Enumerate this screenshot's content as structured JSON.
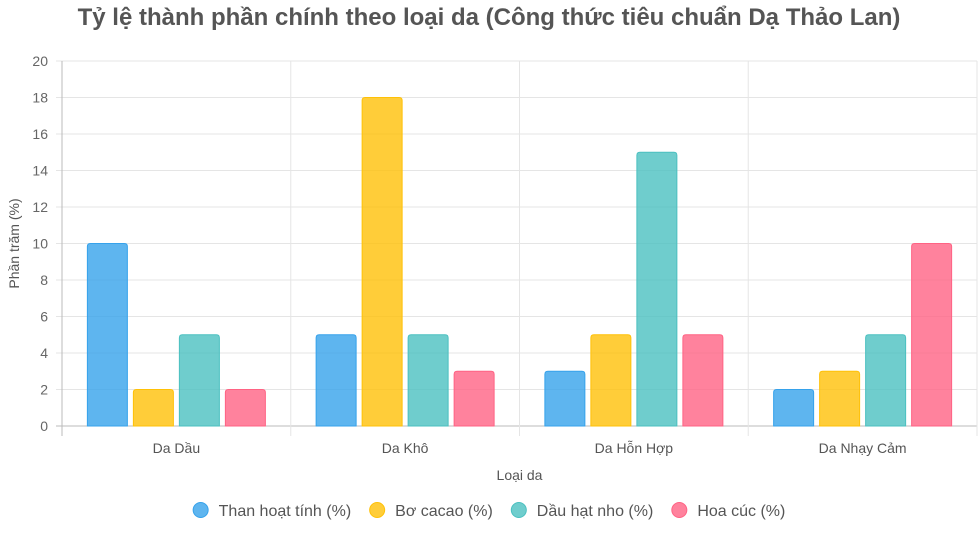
{
  "chart_data": {
    "type": "bar",
    "title": "Tỷ lệ thành phần chính theo loại da (Công thức tiêu chuẩn Dạ Thảo Lan)",
    "xlabel": "Loại da",
    "ylabel": "Phần trăm (%)",
    "ylim": [
      0,
      20
    ],
    "yticks": [
      "0",
      "2",
      "4",
      "6",
      "8",
      "10",
      "12",
      "14",
      "16",
      "18",
      "20"
    ],
    "grid": true,
    "legend_position": "bottom",
    "categories": [
      "Da Dầu",
      "Da Khô",
      "Da Hỗn Hợp",
      "Da Nhạy Cảm"
    ],
    "series": [
      {
        "name": "Than hoạt tính (%)",
        "values": [
          10,
          5,
          3,
          2
        ],
        "color": "#36a2eb"
      },
      {
        "name": "Bơ cacao (%)",
        "values": [
          2,
          18,
          5,
          3
        ],
        "color": "#ffc107"
      },
      {
        "name": "Dầu hạt nho (%)",
        "values": [
          5,
          5,
          15,
          5
        ],
        "color": "#4bc0c0"
      },
      {
        "name": "Hoa cúc (%)",
        "values": [
          2,
          3,
          5,
          10
        ],
        "color": "#ff6384"
      }
    ]
  }
}
